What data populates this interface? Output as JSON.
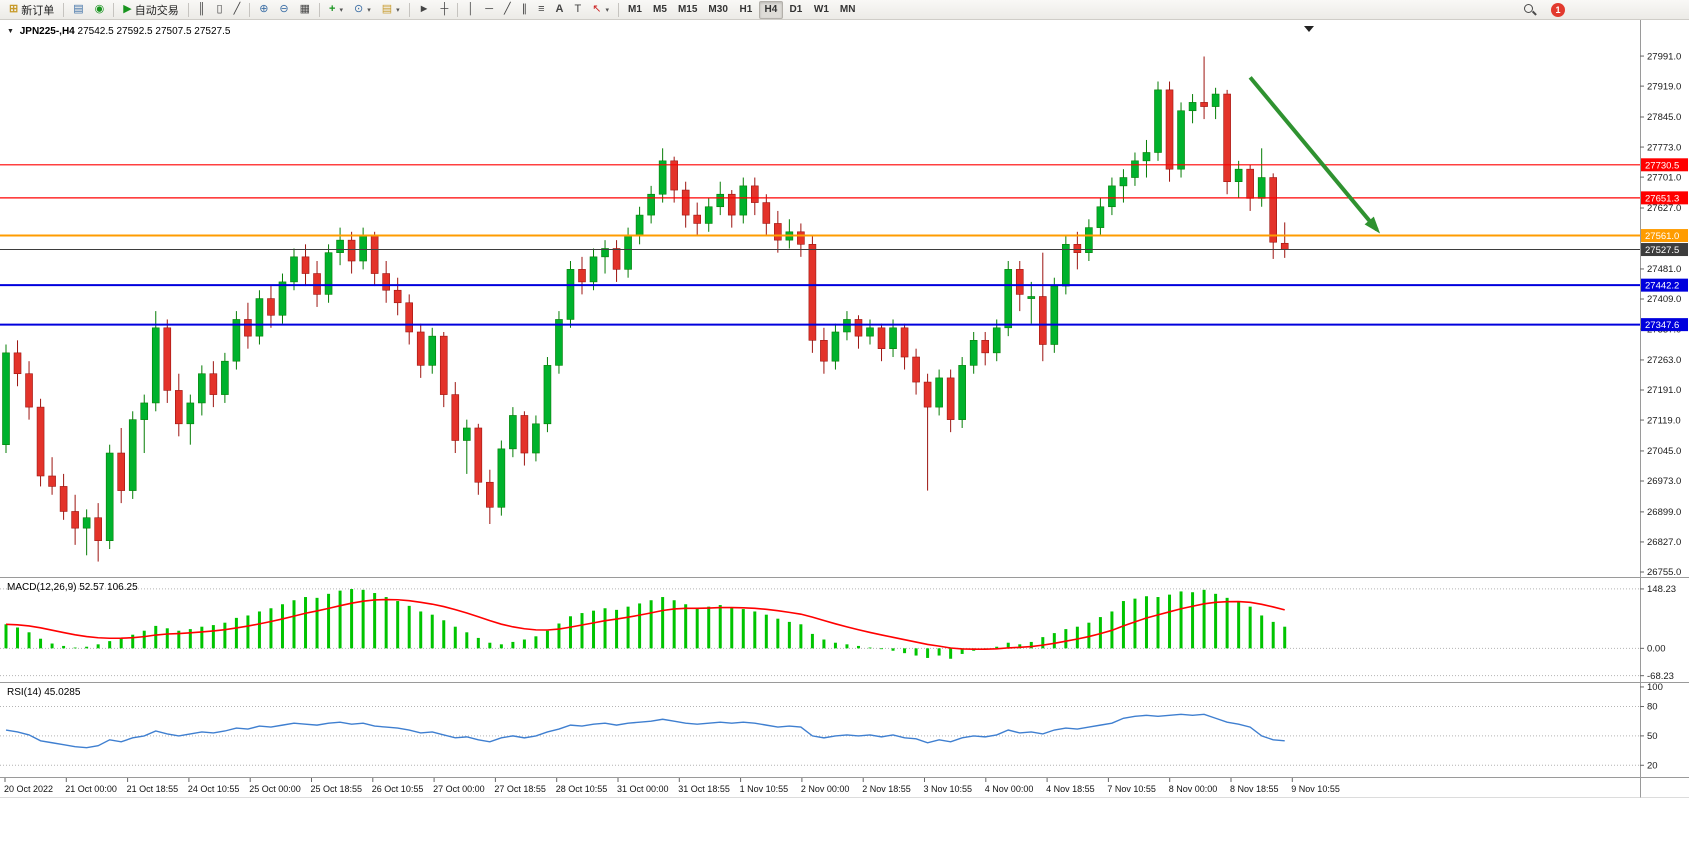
{
  "toolbar": {
    "new_order_label": "新订单",
    "autotrade_label": "自动交易",
    "timeframes": [
      "M1",
      "M5",
      "M15",
      "M30",
      "H1",
      "H4",
      "D1",
      "W1",
      "MN"
    ],
    "active_timeframe": "H4",
    "notification_count": "1",
    "icons": {
      "new_order": "⊞",
      "market_watch": "▤",
      "community": "◉",
      "autotrade_play": "▶",
      "chart_bars": "║",
      "chart_candles": "▯",
      "chart_line": "╱",
      "zoom_in": "⊕",
      "zoom_out": "⊖",
      "tile_windows": "▦",
      "indicators": "+",
      "periods": "⊙",
      "templates": "▤",
      "cursor": "►",
      "crosshair": "┼",
      "vline": "│",
      "hline": "─",
      "trendline": "╱",
      "channel": "∥",
      "fibonacci": "≡",
      "text": "A",
      "text_label": "T",
      "arrows": "↖",
      "caret": "▾"
    }
  },
  "chart": {
    "collapse_glyph": "▼",
    "symbol_label": "JPN225-,H4",
    "ohlc_label": "27542.5 27592.5 27507.5 27527.5",
    "shift_marker_glyph": "▼",
    "price_axis_labels": [
      "27991.0",
      "27919.0",
      "27845.0",
      "27773.0",
      "27701.0",
      "27627.0",
      "27481.0",
      "27409.0",
      "27337.0",
      "27263.0",
      "27191.0",
      "27119.0",
      "27045.0",
      "26973.0",
      "26899.0",
      "26827.0",
      "26755.0"
    ],
    "price_badges": [
      {
        "text": "27730.5",
        "price": 27730.5,
        "color": "#ff0000"
      },
      {
        "text": "27651.3",
        "price": 27651.3,
        "color": "#ff0000"
      },
      {
        "text": "27561.0",
        "price": 27561.0,
        "color": "#ff9c00"
      },
      {
        "text": "27527.5",
        "price": 27527.5,
        "color": "#3d3d3d"
      },
      {
        "text": "27442.2",
        "price": 27442.2,
        "color": "#0000dd"
      },
      {
        "text": "27347.6",
        "price": 27347.6,
        "color": "#0000dd"
      }
    ]
  },
  "hlines": [
    {
      "price": 27730.5,
      "color": "#ff0000",
      "width": 1.2
    },
    {
      "price": 27651.3,
      "color": "#ff0000",
      "width": 1.2
    },
    {
      "price": 27561.0,
      "color": "#ff9c00",
      "width": 2
    },
    {
      "price": 27527.5,
      "color": "#3d3d3d",
      "width": 1
    },
    {
      "price": 27442.2,
      "color": "#0000dd",
      "width": 2
    },
    {
      "price": 27347.6,
      "color": "#0000dd",
      "width": 2
    }
  ],
  "annotation_arrow": {
    "from_bar": 108,
    "from_price": 27940,
    "to_bar": 119,
    "to_price": 27575,
    "color": "#2f9230"
  },
  "indicators": {
    "macd": {
      "name": "MACD(12,26,9)",
      "values": "52.57 106.25",
      "axis_labels": [
        "148.23",
        "0.00",
        "-68.23"
      ],
      "axis_values": [
        148.23,
        0,
        -68.23
      ],
      "hist_color": "#00c400",
      "signal_color": "#ff0000",
      "histogram": [
        60,
        52,
        40,
        24,
        12,
        6,
        2,
        4,
        10,
        18,
        26,
        34,
        44,
        56,
        50,
        44,
        48,
        54,
        58,
        64,
        76,
        82,
        92,
        100,
        110,
        120,
        128,
        126,
        136,
        144,
        148,
        146,
        138,
        128,
        118,
        106,
        92,
        84,
        70,
        54,
        40,
        26,
        14,
        10,
        16,
        22,
        30,
        44,
        62,
        80,
        88,
        94,
        100,
        96,
        104,
        112,
        120,
        128,
        120,
        110,
        100,
        104,
        108,
        102,
        98,
        92,
        84,
        74,
        66,
        60,
        36,
        22,
        14,
        10,
        6,
        2,
        -2,
        -6,
        -12,
        -18,
        -24,
        -18,
        -26,
        -14,
        -6,
        -2,
        4,
        14,
        10,
        16,
        28,
        38,
        48,
        54,
        64,
        78,
        92,
        118,
        124,
        130,
        128,
        134,
        142,
        140,
        146,
        136,
        126,
        118,
        104,
        82,
        66,
        54
      ]
    },
    "rsi": {
      "name": "RSI(14)",
      "value": "45.0285",
      "axis_labels": [
        "100",
        "80",
        "50",
        "20"
      ],
      "axis_values": [
        100,
        80,
        50,
        20
      ],
      "levels": [
        80,
        50,
        20
      ],
      "color": "#3f7fd0",
      "values": [
        56,
        54,
        51,
        45,
        43,
        41,
        39,
        38,
        40,
        46,
        44,
        48,
        50,
        55,
        52,
        50,
        52,
        54,
        53,
        55,
        58,
        57,
        60,
        59,
        61,
        63,
        62,
        61,
        63,
        64,
        62,
        63,
        60,
        59,
        58,
        56,
        53,
        54,
        51,
        48,
        49,
        46,
        44,
        48,
        50,
        48,
        50,
        54,
        57,
        61,
        60,
        62,
        63,
        61,
        63,
        64,
        65,
        67,
        65,
        63,
        62,
        63,
        64,
        63,
        64,
        63,
        61,
        59,
        60,
        59,
        50,
        48,
        50,
        51,
        50,
        51,
        49,
        51,
        48,
        47,
        43,
        46,
        44,
        48,
        50,
        49,
        51,
        56,
        53,
        54,
        52,
        56,
        58,
        57,
        59,
        61,
        63,
        68,
        70,
        71,
        70,
        71,
        72,
        71,
        72,
        68,
        64,
        62,
        59,
        50,
        46,
        45
      ]
    }
  },
  "time_axis": [
    "20 Oct 2022",
    "21 Oct 00:00",
    "21 Oct 18:55",
    "24 Oct 10:55",
    "25 Oct 00:00",
    "25 Oct 18:55",
    "26 Oct 10:55",
    "27 Oct 00:00",
    "27 Oct 18:55",
    "28 Oct 10:55",
    "31 Oct 00:00",
    "31 Oct 18:55",
    "1 Nov 10:55",
    "2 Nov 00:00",
    "2 Nov 18:55",
    "3 Nov 10:55",
    "4 Nov 00:00",
    "4 Nov 18:55",
    "7 Nov 10:55",
    "8 Nov 00:00",
    "8 Nov 18:55",
    "9 Nov 10:55"
  ],
  "chart_data": {
    "type": "candlestick",
    "symbol": "JPN225-",
    "timeframe": "H4",
    "title": "JPN225-,H4 27542.5 27592.5 27507.5 27527.5",
    "price_axis_range": {
      "max": 28075,
      "min": 26743
    },
    "up_color": "#00b22d",
    "down_color": "#e3332a",
    "candles": [
      [
        27060,
        27300,
        27040,
        27280
      ],
      [
        27280,
        27310,
        27200,
        27230
      ],
      [
        27230,
        27260,
        27120,
        27150
      ],
      [
        27150,
        27170,
        26960,
        26985
      ],
      [
        26985,
        27030,
        26940,
        26960
      ],
      [
        26960,
        26990,
        26880,
        26900
      ],
      [
        26900,
        26940,
        26820,
        26860
      ],
      [
        26860,
        26905,
        26795,
        26885
      ],
      [
        26885,
        26920,
        26780,
        26830
      ],
      [
        26830,
        27060,
        26810,
        27040
      ],
      [
        27040,
        27100,
        26920,
        26950
      ],
      [
        26950,
        27140,
        26930,
        27120
      ],
      [
        27120,
        27180,
        27040,
        27160
      ],
      [
        27160,
        27380,
        27140,
        27340
      ],
      [
        27340,
        27360,
        27160,
        27190
      ],
      [
        27190,
        27230,
        27080,
        27110
      ],
      [
        27110,
        27180,
        27060,
        27160
      ],
      [
        27160,
        27250,
        27130,
        27230
      ],
      [
        27230,
        27260,
        27150,
        27180
      ],
      [
        27180,
        27280,
        27160,
        27260
      ],
      [
        27260,
        27380,
        27240,
        27360
      ],
      [
        27360,
        27400,
        27290,
        27320
      ],
      [
        27320,
        27430,
        27300,
        27410
      ],
      [
        27410,
        27440,
        27340,
        27370
      ],
      [
        27370,
        27470,
        27350,
        27450
      ],
      [
        27450,
        27530,
        27430,
        27510
      ],
      [
        27510,
        27540,
        27440,
        27470
      ],
      [
        27470,
        27500,
        27390,
        27420
      ],
      [
        27420,
        27540,
        27400,
        27520
      ],
      [
        27520,
        27580,
        27490,
        27550
      ],
      [
        27550,
        27570,
        27470,
        27500
      ],
      [
        27500,
        27580,
        27480,
        27560
      ],
      [
        27560,
        27570,
        27440,
        27470
      ],
      [
        27470,
        27500,
        27400,
        27430
      ],
      [
        27430,
        27460,
        27370,
        27400
      ],
      [
        27400,
        27420,
        27300,
        27330
      ],
      [
        27330,
        27350,
        27220,
        27250
      ],
      [
        27250,
        27340,
        27230,
        27320
      ],
      [
        27320,
        27330,
        27150,
        27180
      ],
      [
        27180,
        27210,
        27040,
        27070
      ],
      [
        27070,
        27120,
        26990,
        27100
      ],
      [
        27100,
        27110,
        26940,
        26970
      ],
      [
        26970,
        27000,
        26870,
        26910
      ],
      [
        26910,
        27070,
        26890,
        27050
      ],
      [
        27050,
        27150,
        27030,
        27130
      ],
      [
        27130,
        27140,
        27010,
        27040
      ],
      [
        27040,
        27130,
        27020,
        27110
      ],
      [
        27110,
        27270,
        27090,
        27250
      ],
      [
        27250,
        27380,
        27230,
        27360
      ],
      [
        27360,
        27500,
        27340,
        27480
      ],
      [
        27480,
        27510,
        27420,
        27450
      ],
      [
        27450,
        27530,
        27430,
        27510
      ],
      [
        27510,
        27550,
        27470,
        27530
      ],
      [
        27530,
        27550,
        27450,
        27480
      ],
      [
        27480,
        27580,
        27460,
        27560
      ],
      [
        27560,
        27630,
        27540,
        27610
      ],
      [
        27610,
        27680,
        27590,
        27660
      ],
      [
        27660,
        27770,
        27640,
        27740
      ],
      [
        27740,
        27750,
        27640,
        27670
      ],
      [
        27670,
        27690,
        27580,
        27610
      ],
      [
        27610,
        27640,
        27560,
        27590
      ],
      [
        27590,
        27650,
        27570,
        27630
      ],
      [
        27630,
        27690,
        27610,
        27660
      ],
      [
        27660,
        27670,
        27580,
        27610
      ],
      [
        27610,
        27700,
        27590,
        27680
      ],
      [
        27680,
        27700,
        27610,
        27640
      ],
      [
        27640,
        27660,
        27560,
        27590
      ],
      [
        27590,
        27620,
        27520,
        27550
      ],
      [
        27550,
        27600,
        27530,
        27570
      ],
      [
        27570,
        27590,
        27510,
        27540
      ],
      [
        27540,
        27560,
        27280,
        27310
      ],
      [
        27310,
        27340,
        27230,
        27260
      ],
      [
        27260,
        27350,
        27240,
        27330
      ],
      [
        27330,
        27380,
        27310,
        27360
      ],
      [
        27360,
        27370,
        27290,
        27320
      ],
      [
        27320,
        27360,
        27300,
        27340
      ],
      [
        27340,
        27350,
        27260,
        27290
      ],
      [
        27290,
        27360,
        27270,
        27340
      ],
      [
        27340,
        27350,
        27240,
        27270
      ],
      [
        27270,
        27290,
        27180,
        27210
      ],
      [
        27210,
        27230,
        26950,
        27150
      ],
      [
        27150,
        27240,
        27130,
        27220
      ],
      [
        27220,
        27240,
        27090,
        27120
      ],
      [
        27120,
        27270,
        27100,
        27250
      ],
      [
        27250,
        27330,
        27230,
        27310
      ],
      [
        27310,
        27330,
        27250,
        27280
      ],
      [
        27280,
        27360,
        27260,
        27340
      ],
      [
        27340,
        27500,
        27320,
        27480
      ],
      [
        27480,
        27500,
        27380,
        27420
      ],
      [
        27410,
        27450,
        27350,
        27415
      ],
      [
        27415,
        27520,
        27260,
        27300
      ],
      [
        27300,
        27460,
        27280,
        27440
      ],
      [
        27440,
        27560,
        27420,
        27540
      ],
      [
        27540,
        27570,
        27480,
        27520
      ],
      [
        27520,
        27600,
        27500,
        27580
      ],
      [
        27580,
        27650,
        27560,
        27630
      ],
      [
        27630,
        27700,
        27610,
        27680
      ],
      [
        27680,
        27720,
        27640,
        27700
      ],
      [
        27700,
        27760,
        27680,
        27740
      ],
      [
        27740,
        27790,
        27700,
        27760
      ],
      [
        27760,
        27930,
        27740,
        27910
      ],
      [
        27910,
        27930,
        27690,
        27720
      ],
      [
        27720,
        27880,
        27700,
        27860
      ],
      [
        27860,
        27900,
        27830,
        27880
      ],
      [
        27880,
        27990,
        27840,
        27870
      ],
      [
        27870,
        27915,
        27840,
        27900
      ],
      [
        27900,
        27910,
        27660,
        27690
      ],
      [
        27690,
        27740,
        27650,
        27720
      ],
      [
        27720,
        27730,
        27620,
        27650
      ],
      [
        27650,
        27770,
        27630,
        27700
      ],
      [
        27700,
        27710,
        27505,
        27545
      ],
      [
        27542.5,
        27592.5,
        27507.5,
        27527.5
      ]
    ]
  }
}
